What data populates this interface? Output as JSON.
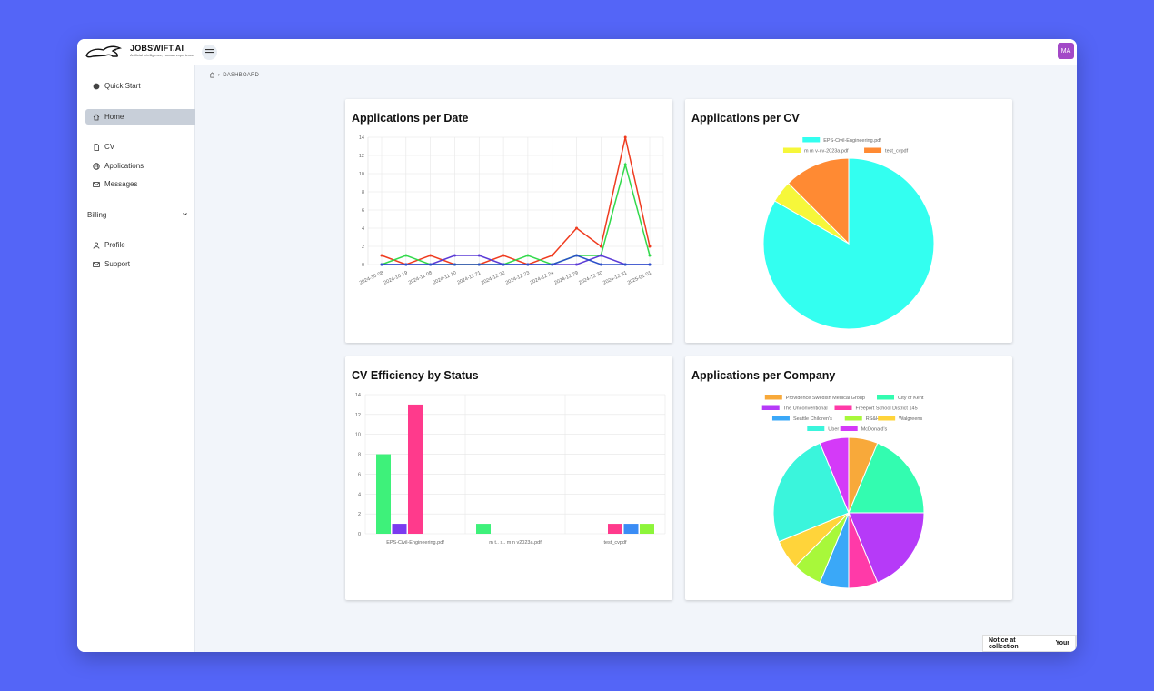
{
  "app": {
    "brand_name": "JOBSWIFT.AI",
    "brand_tagline": "Artificial intelligence, human experience",
    "avatar_initials": "MA"
  },
  "sidebar": {
    "quick_start": "Quick Start",
    "home": "Home",
    "cv": "CV",
    "applications": "Applications",
    "messages": "Messages",
    "billing": "Billing",
    "profile": "Profile",
    "support": "Support"
  },
  "breadcrumb": {
    "current": "DASHBOARD"
  },
  "notice": {
    "label": "Notice at collection",
    "label2": "Your"
  },
  "cards": {
    "per_date": "Applications per Date",
    "per_cv": "Applications per CV",
    "efficiency": "CV Efficiency by Status",
    "per_company": "Applications per Company"
  },
  "chart_data": [
    {
      "type": "line",
      "title": "Applications per Date",
      "x": [
        "2024-10-08",
        "2024-10-19",
        "2024-11-08",
        "2024-11-10",
        "2024-11-21",
        "2024-12-22",
        "2024-12-23",
        "2024-12-24",
        "2024-12-29",
        "2024-12-30",
        "2024-12-31",
        "2025-01-01"
      ],
      "ylim": [
        0,
        14
      ],
      "yticks": [
        0,
        2,
        4,
        6,
        8,
        10,
        12,
        14
      ],
      "grid": true,
      "series": [
        {
          "color": "#ef3b1f",
          "values": [
            1,
            0,
            1,
            0,
            0,
            1,
            0,
            1,
            4,
            2,
            14,
            2
          ]
        },
        {
          "color": "#33d94c",
          "values": [
            0,
            1,
            0,
            0,
            0,
            0,
            1,
            0,
            1,
            1,
            11,
            1
          ]
        },
        {
          "color": "#5b3bd6",
          "values": [
            0,
            0,
            0,
            1,
            1,
            0,
            0,
            0,
            0,
            1,
            0,
            0
          ]
        },
        {
          "color": "#2b4fc9",
          "values": [
            0,
            0,
            0,
            0,
            0,
            0,
            0,
            0,
            1,
            0,
            0,
            0
          ]
        }
      ]
    },
    {
      "type": "pie",
      "title": "Applications per CV",
      "legend": "top",
      "slices": [
        {
          "name": "EPS-Civil-Engineering.pdf",
          "value": 20,
          "color": "#33fff0"
        },
        {
          "name": "m   m  v-cv-2023a.pdf",
          "value": 1,
          "color": "#f6f73a"
        },
        {
          "name": "test_cvpdf",
          "value": 3,
          "color": "#ff8a33"
        }
      ]
    },
    {
      "type": "bar",
      "title": "CV Efficiency by Status",
      "categories": [
        "EPS-Civil-Engineering.pdf",
        "m  t.. s.. m   n   v2023a.pdf",
        "test_cvpdf"
      ],
      "ylim": [
        0,
        14
      ],
      "yticks": [
        0,
        2,
        4,
        6,
        8,
        10,
        12,
        14
      ],
      "grid": true,
      "series": [
        {
          "color": "#3ef17a",
          "values": [
            8,
            1,
            0
          ]
        },
        {
          "color": "#7b3bf0",
          "values": [
            1,
            0,
            0
          ]
        },
        {
          "color": "#ff3a8c",
          "values": [
            13,
            0,
            1
          ]
        },
        {
          "color": "#3a8cf5",
          "values": [
            0,
            0,
            1
          ]
        },
        {
          "color": "#8df53a",
          "values": [
            0,
            0,
            1
          ]
        }
      ]
    },
    {
      "type": "pie",
      "title": "Applications per Company",
      "legend": "top",
      "slices": [
        {
          "name": "Providence Swedish Medical Group",
          "value": 1,
          "color": "#f8a93a"
        },
        {
          "name": "City of Kent",
          "value": 3,
          "color": "#33fcb0"
        },
        {
          "name": "The Unconventional",
          "value": 3,
          "color": "#b63af8"
        },
        {
          "name": "Freeport School District 145",
          "value": 1,
          "color": "#ff3aa8"
        },
        {
          "name": "Seattle Children's",
          "value": 1,
          "color": "#3aa8f8"
        },
        {
          "name": "RS&H",
          "value": 1,
          "color": "#a8f83a"
        },
        {
          "name": "Walgreens",
          "value": 1,
          "color": "#ffd43a"
        },
        {
          "name": "Uber",
          "value": 4,
          "color": "#3af5dc"
        },
        {
          "name": "McDonald's",
          "value": 1,
          "color": "#d43af8"
        }
      ]
    }
  ]
}
